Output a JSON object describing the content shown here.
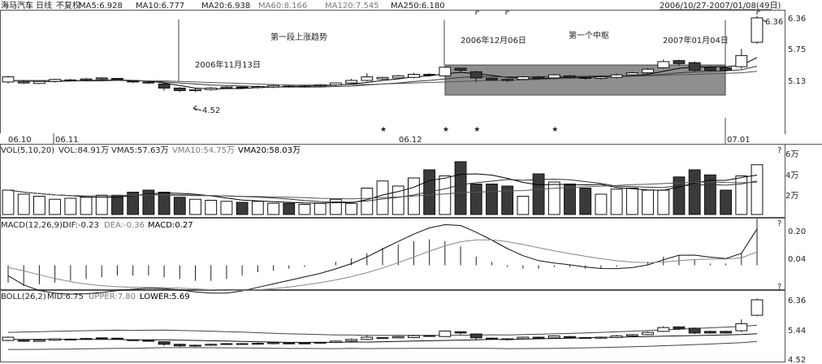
{
  "header": {
    "stock_name": "海马汽车",
    "period": "日线",
    "adjust": "不复权",
    "ma": [
      {
        "label": "MA5:6.928",
        "color": "#222222"
      },
      {
        "label": "MA10:6.777",
        "color": "#222222"
      },
      {
        "label": "MA20:6.938",
        "color": "#222222"
      },
      {
        "label": "MA60:8.166",
        "color": "#7a7a7a"
      },
      {
        "label": "MA120:7.545",
        "color": "#7a7a7a"
      },
      {
        "label": "MA250:6.180",
        "color": "#222222"
      }
    ],
    "date_range": "2006/10/27-2007/01/08(49日)"
  },
  "annotations": {
    "label_first_rise": "第一段上涨趋势",
    "label_nov13": "2006年11月13日",
    "label_dec06": "2006年12月06日",
    "label_pivot": "第一个中枢",
    "label_jan04": "2007年01月04日",
    "price_high": "6.36",
    "price_low": "4.52"
  },
  "right_axis": {
    "main_ticks": [
      "6.36",
      "5.75",
      "5.13"
    ],
    "vol_ticks": [
      "6万",
      "4万",
      "2万"
    ],
    "macd_ticks": [
      "0.20",
      "0.04"
    ],
    "boll_ticks": [
      "6.36",
      "5.44",
      "4.52"
    ],
    "marker": "?"
  },
  "x_axis": {
    "labels": [
      "06.10",
      "06.11",
      "06.12",
      "07.01"
    ]
  },
  "vol_header": {
    "name": "VOL(5,10,20)",
    "vol": "VOL:84.91万",
    "vma5": "VMA5:57.63万",
    "vma10": "VMA10:54.75万",
    "vma20": "VMA20:58.03万"
  },
  "macd_header": {
    "name": "MACD(12,26,9)",
    "dif": "DIF:-0.23",
    "dea": "DEA:-0.36",
    "macd": "MACD:0.27"
  },
  "boll_header": {
    "name": "BOLL(26,2)",
    "mid": "MID:6.75",
    "upper": "UPPER:7.80",
    "lower": "LOWER:5.69"
  },
  "chart_data": {
    "type": "candlestick",
    "price_axis": {
      "ticks": [
        5.13,
        5.75,
        6.36
      ]
    },
    "candles": [
      [
        5.1,
        5.2,
        5.07,
        5.22
      ],
      [
        5.08,
        5.1,
        5.06,
        5.14
      ],
      [
        5.07,
        5.11,
        5.06,
        5.12
      ],
      [
        5.11,
        5.15,
        5.09,
        5.16
      ],
      [
        5.13,
        5.14,
        5.11,
        5.16
      ],
      [
        5.14,
        5.16,
        5.12,
        5.18
      ],
      [
        5.16,
        5.18,
        5.14,
        5.19
      ],
      [
        5.17,
        5.15,
        5.13,
        5.18
      ],
      [
        5.12,
        5.1,
        5.08,
        5.13
      ],
      [
        5.1,
        5.08,
        5.06,
        5.11
      ],
      [
        5.06,
        4.98,
        4.93,
        5.07
      ],
      [
        4.98,
        4.93,
        4.9,
        5.0
      ],
      [
        4.93,
        4.95,
        4.9,
        4.97
      ],
      [
        4.95,
        4.98,
        4.93,
        5.0
      ],
      [
        4.98,
        5.0,
        4.96,
        5.02
      ],
      [
        5.0,
        4.99,
        4.97,
        5.02
      ],
      [
        4.99,
        5.01,
        4.97,
        5.03
      ],
      [
        5.0,
        5.03,
        4.98,
        5.04
      ],
      [
        5.02,
        5.01,
        4.99,
        5.04
      ],
      [
        5.01,
        5.02,
        4.99,
        5.04
      ],
      [
        5.02,
        5.04,
        5.0,
        5.06
      ],
      [
        5.04,
        5.08,
        5.02,
        5.09
      ],
      [
        5.08,
        5.13,
        5.06,
        5.16
      ],
      [
        5.13,
        5.2,
        5.11,
        5.27
      ],
      [
        5.16,
        5.19,
        5.14,
        5.2
      ],
      [
        5.18,
        5.22,
        5.16,
        5.24
      ],
      [
        5.19,
        5.25,
        5.17,
        5.28
      ],
      [
        5.25,
        5.24,
        5.21,
        5.27
      ],
      [
        5.22,
        5.39,
        5.2,
        5.41
      ],
      [
        5.37,
        5.33,
        5.28,
        5.38
      ],
      [
        5.3,
        5.18,
        5.1,
        5.32
      ],
      [
        5.17,
        5.14,
        5.12,
        5.19
      ],
      [
        5.15,
        5.13,
        5.1,
        5.17
      ],
      [
        5.15,
        5.2,
        5.13,
        5.22
      ],
      [
        5.2,
        5.17,
        5.15,
        5.22
      ],
      [
        5.18,
        5.24,
        5.16,
        5.26
      ],
      [
        5.22,
        5.19,
        5.17,
        5.24
      ],
      [
        5.19,
        5.17,
        5.15,
        5.2
      ],
      [
        5.17,
        5.2,
        5.15,
        5.22
      ],
      [
        5.19,
        5.24,
        5.17,
        5.27
      ],
      [
        5.24,
        5.28,
        5.22,
        5.3
      ],
      [
        5.28,
        5.35,
        5.26,
        5.38
      ],
      [
        5.38,
        5.5,
        5.36,
        5.54
      ],
      [
        5.52,
        5.46,
        5.42,
        5.54
      ],
      [
        5.48,
        5.33,
        5.3,
        5.5
      ],
      [
        5.38,
        5.33,
        5.31,
        5.4
      ],
      [
        5.38,
        5.33,
        5.31,
        5.4
      ],
      [
        5.4,
        5.62,
        5.36,
        5.75
      ],
      [
        5.88,
        6.36,
        5.85,
        6.4
      ]
    ],
    "ma_lines": [
      {
        "name": "MA5",
        "values": [
          5.12,
          5.12,
          5.11,
          5.11,
          5.12,
          5.13,
          5.14,
          5.14,
          5.13,
          5.12,
          5.08,
          5.03,
          4.98,
          4.96,
          4.97,
          4.97,
          4.99,
          5.0,
          5.01,
          5.02,
          5.02,
          5.04,
          5.06,
          5.09,
          5.13,
          5.16,
          5.2,
          5.22,
          5.26,
          5.29,
          5.26,
          5.23,
          5.19,
          5.17,
          5.16,
          5.18,
          5.19,
          5.19,
          5.2,
          5.21,
          5.22,
          5.25,
          5.31,
          5.37,
          5.39,
          5.4,
          5.4,
          5.43,
          5.58
        ]
      },
      {
        "name": "MA10",
        "values": [
          5.12,
          5.12,
          5.12,
          5.12,
          5.12,
          5.12,
          5.12,
          5.13,
          5.13,
          5.12,
          5.1,
          5.08,
          5.06,
          5.04,
          5.03,
          5.02,
          5.01,
          5.0,
          5.0,
          5.0,
          5.0,
          5.01,
          5.02,
          5.04,
          5.06,
          5.08,
          5.11,
          5.13,
          5.16,
          5.19,
          5.2,
          5.2,
          5.2,
          5.2,
          5.2,
          5.21,
          5.21,
          5.21,
          5.22,
          5.22,
          5.22,
          5.23,
          5.25,
          5.28,
          5.3,
          5.31,
          5.32,
          5.34,
          5.41
        ]
      },
      {
        "name": "MA20",
        "values": [
          5.13,
          5.13,
          5.13,
          5.13,
          5.13,
          5.13,
          5.13,
          5.13,
          5.12,
          5.12,
          5.12,
          5.11,
          5.1,
          5.09,
          5.08,
          5.07,
          5.06,
          5.05,
          5.04,
          5.04,
          5.04,
          5.04,
          5.05,
          5.05,
          5.06,
          5.07,
          5.08,
          5.09,
          5.1,
          5.11,
          5.12,
          5.13,
          5.13,
          5.14,
          5.15,
          5.16,
          5.17,
          5.18,
          5.19,
          5.2,
          5.21,
          5.22,
          5.23,
          5.24,
          5.25,
          5.26,
          5.27,
          5.28,
          5.31
        ]
      }
    ],
    "volume": [
      2.4,
      2.0,
      1.8,
      1.5,
      1.6,
      1.7,
      1.9,
      1.9,
      2.2,
      2.4,
      2.2,
      1.7,
      1.5,
      1.4,
      1.3,
      1.2,
      1.3,
      1.1,
      1.1,
      1.0,
      1.1,
      1.5,
      1.1,
      2.6,
      3.3,
      2.8,
      3.6,
      4.4,
      3.8,
      5.2,
      3.0,
      3.0,
      2.8,
      1.8,
      4.0,
      3.2,
      3.0,
      2.6,
      2.0,
      2.5,
      2.6,
      2.4,
      2.4,
      3.7,
      4.4,
      3.9,
      2.4,
      3.8,
      4.9
    ],
    "macd_hist": [
      -0.1,
      -0.12,
      -0.11,
      -0.1,
      -0.09,
      -0.08,
      -0.07,
      -0.06,
      -0.06,
      -0.06,
      -0.07,
      -0.08,
      -0.09,
      -0.09,
      -0.08,
      -0.06,
      -0.04,
      -0.03,
      -0.02,
      -0.01,
      0.0,
      0.02,
      0.04,
      0.07,
      0.1,
      0.12,
      0.14,
      0.15,
      0.14,
      0.11,
      0.05,
      0.02,
      -0.01,
      -0.02,
      -0.02,
      -0.01,
      -0.01,
      -0.02,
      -0.02,
      -0.01,
      0.0,
      0.02,
      0.05,
      0.06,
      0.03,
      0.01,
      0.01,
      0.07,
      0.27
    ],
    "boll": {
      "mid": 6.75,
      "upper": 7.8,
      "lower": 5.69
    },
    "boll_axis": {
      "ticks": [
        4.52,
        5.44,
        6.36
      ]
    }
  }
}
